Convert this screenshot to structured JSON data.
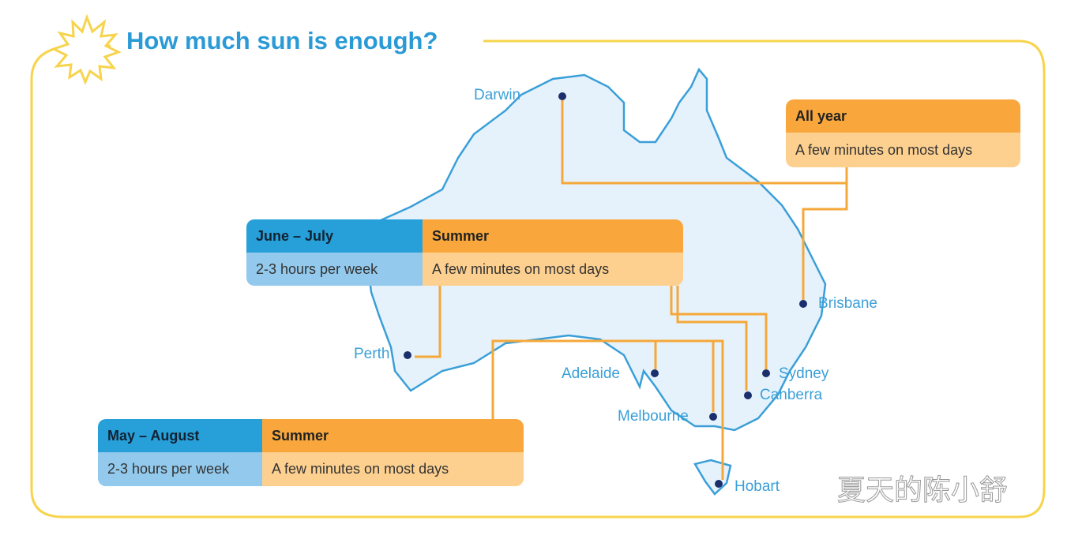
{
  "title": "How much sun is enough?",
  "colors": {
    "frame": "#f7d44c",
    "title": "#2a9ad6",
    "map_fill": "#e6f2fb",
    "map_outline": "#3a9fd8",
    "connector": "#f5a83a",
    "city_dot": "#1a2f6b"
  },
  "cities": [
    "Darwin",
    "Brisbane",
    "Perth",
    "Adelaide",
    "Sydney",
    "Canberra",
    "Melbourne",
    "Hobart"
  ],
  "boxes": {
    "north": {
      "header": "All year",
      "text": "A few minutes on most days"
    },
    "perth": {
      "winter_header": "June – July",
      "winter_text": "2-3 hours per week",
      "summer_header": "Summer",
      "summer_text": "A few minutes on most days"
    },
    "south": {
      "winter_header": "May – August",
      "winter_text": "2-3 hours per week",
      "summer_header": "Summer",
      "summer_text": "A few minutes on most days"
    }
  },
  "watermark": "夏天的陈小舒"
}
